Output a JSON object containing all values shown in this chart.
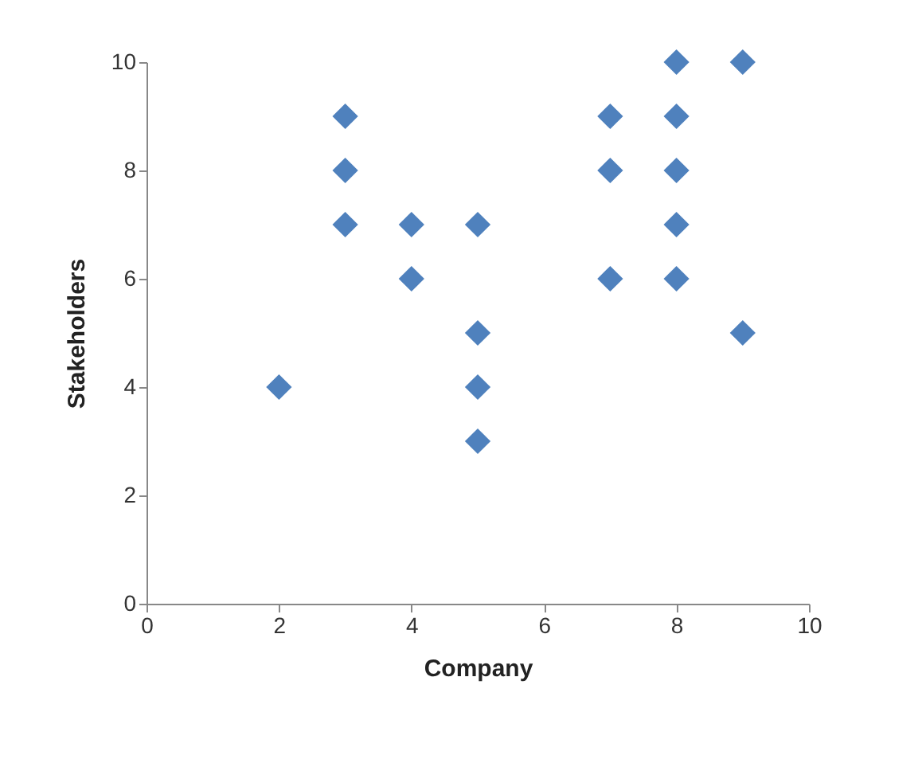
{
  "chart_data": {
    "type": "scatter",
    "xlabel": "Company",
    "ylabel": "Stakeholders",
    "x": [
      2,
      3,
      3,
      3,
      4,
      4,
      5,
      5,
      5,
      5,
      7,
      7,
      7,
      8,
      8,
      8,
      8,
      8,
      9,
      9
    ],
    "values": [
      4,
      9,
      8,
      7,
      7,
      6,
      7,
      5,
      4,
      3,
      9,
      8,
      6,
      10,
      9,
      8,
      7,
      6,
      10,
      5
    ],
    "color": "#4f81bd",
    "marker": "diamond",
    "grid": false,
    "xlim": [
      0,
      10
    ],
    "xticks": [
      0,
      2,
      4,
      6,
      8,
      10
    ],
    "ylim": [
      0,
      10
    ],
    "yticks": [
      0,
      2,
      4,
      6,
      8,
      10
    ]
  }
}
